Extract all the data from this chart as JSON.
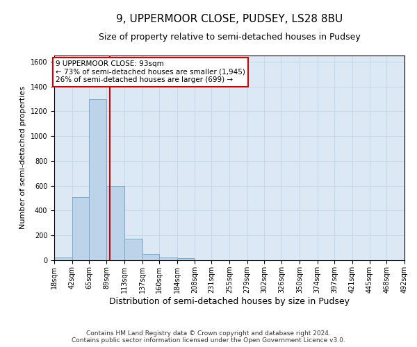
{
  "title": "9, UPPERMOOR CLOSE, PUDSEY, LS28 8BU",
  "subtitle": "Size of property relative to semi-detached houses in Pudsey",
  "xlabel": "Distribution of semi-detached houses by size in Pudsey",
  "ylabel": "Number of semi-detached properties",
  "footer_line1": "Contains HM Land Registry data © Crown copyright and database right 2024.",
  "footer_line2": "Contains public sector information licensed under the Open Government Licence v3.0.",
  "annotation_line1": "9 UPPERMOOR CLOSE: 93sqm",
  "annotation_line2": "← 73% of semi-detached houses are smaller (1,945)",
  "annotation_line3": "26% of semi-detached houses are larger (699) →",
  "bar_values": [
    25,
    510,
    1295,
    600,
    175,
    50,
    25,
    15,
    0,
    0,
    0,
    0,
    0,
    0,
    0,
    0,
    0,
    0,
    0,
    0
  ],
  "categories": [
    "18sqm",
    "42sqm",
    "65sqm",
    "89sqm",
    "113sqm",
    "137sqm",
    "160sqm",
    "184sqm",
    "208sqm",
    "231sqm",
    "255sqm",
    "279sqm",
    "302sqm",
    "326sqm",
    "350sqm",
    "374sqm",
    "397sqm",
    "421sqm",
    "445sqm",
    "468sqm",
    "492sqm"
  ],
  "bin_edges": [
    18,
    42,
    65,
    89,
    113,
    137,
    160,
    184,
    208,
    231,
    255,
    279,
    302,
    326,
    350,
    374,
    397,
    421,
    445,
    468,
    492
  ],
  "bar_color": "#bdd3ea",
  "bar_edge_color": "#7aaac8",
  "vline_color": "#cc0000",
  "vline_x": 93,
  "ylim": [
    0,
    1650
  ],
  "yticks": [
    0,
    200,
    400,
    600,
    800,
    1000,
    1200,
    1400,
    1600
  ],
  "grid_color": "#c8d8e8",
  "background_color": "#dce9f5",
  "annotation_box_color": "#ffffff",
  "annotation_box_edge": "#cc0000",
  "title_fontsize": 11,
  "subtitle_fontsize": 9,
  "xlabel_fontsize": 9,
  "ylabel_fontsize": 8,
  "tick_fontsize": 7,
  "annotation_fontsize": 7.5,
  "footer_fontsize": 6.5
}
